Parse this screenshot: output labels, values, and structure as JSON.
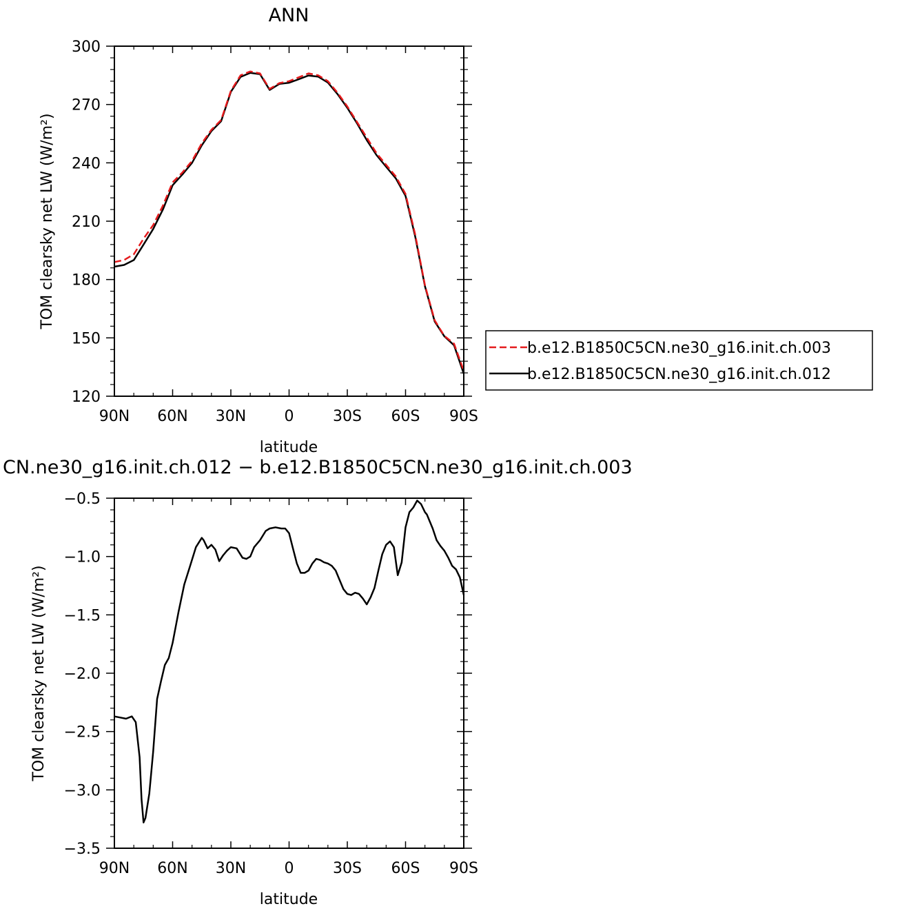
{
  "chart_data": [
    {
      "type": "line",
      "title": "ANN",
      "xlabel": "latitude",
      "ylabel": "TOM clearsky net LW (W/m²)",
      "xlim": [
        90,
        -90
      ],
      "ylim": [
        120,
        300
      ],
      "xticks": [
        90,
        60,
        30,
        0,
        -30,
        -60,
        -90
      ],
      "xtick_labels": [
        "90N",
        "60N",
        "30N",
        "0",
        "30S",
        "60S",
        "90S"
      ],
      "yticks": [
        120,
        150,
        180,
        210,
        240,
        270,
        300
      ],
      "ytick_labels": [
        "120",
        "150",
        "180",
        "210",
        "240",
        "270",
        "300"
      ],
      "grid": false,
      "legend_position": "right",
      "x": [
        90,
        85,
        80,
        75,
        70,
        65,
        60,
        55,
        50,
        45,
        40,
        35,
        30,
        25,
        20,
        15,
        10,
        5,
        0,
        -5,
        -10,
        -15,
        -20,
        -25,
        -30,
        -35,
        -40,
        -45,
        -50,
        -55,
        -60,
        -65,
        -70,
        -75,
        -80,
        -85,
        -90
      ],
      "series": [
        {
          "name": "b.e12.B1850C5CN.ne30_g16.init.ch.003",
          "color": "#e41a1c",
          "dash": "dashed",
          "values": [
            189,
            190,
            193,
            201,
            208,
            218,
            230,
            235,
            241,
            250,
            257,
            262,
            277,
            285,
            287,
            286,
            278,
            281,
            282,
            284,
            286,
            285,
            282,
            276,
            269,
            261,
            253,
            245,
            239,
            233,
            224,
            203,
            177,
            159,
            151,
            147,
            133
          ]
        },
        {
          "name": "b.e12.B1850C5CN.ne30_g16.init.ch.012",
          "color": "#000000",
          "dash": "solid",
          "values": [
            186.6,
            187.5,
            190,
            198,
            206,
            216,
            228.5,
            234,
            240,
            249,
            256.3,
            261.4,
            276.5,
            284.2,
            286.3,
            285.6,
            277.5,
            280.6,
            281.2,
            283,
            284.9,
            284.3,
            281.3,
            275.3,
            268.3,
            260.3,
            251.7,
            244,
            238,
            232,
            223,
            202,
            176.5,
            158.4,
            150.8,
            146.2,
            131.6
          ]
        }
      ]
    },
    {
      "type": "line",
      "title": "CN.ne30_g16.init.ch.012 − b.e12.B1850C5CN.ne30_g16.init.ch.003",
      "xlabel": "latitude",
      "ylabel": "TOM clearsky net LW (W/m²)",
      "xlim": [
        90,
        -90
      ],
      "ylim": [
        -3.5,
        -0.5
      ],
      "xticks": [
        90,
        60,
        30,
        0,
        -30,
        -60,
        -90
      ],
      "xtick_labels": [
        "90N",
        "60N",
        "30N",
        "0",
        "30S",
        "60S",
        "90S"
      ],
      "yticks": [
        -3.5,
        -3.0,
        -2.5,
        -2.0,
        -1.5,
        -1.0,
        -0.5
      ],
      "ytick_labels": [
        "−3.5",
        "−3.0",
        "−2.5",
        "−2.0",
        "−1.5",
        "−1.0",
        "−0.5"
      ],
      "grid": false,
      "x": [
        90,
        87,
        84,
        81,
        79,
        77,
        76,
        75,
        74,
        72,
        70,
        68,
        66,
        64,
        62,
        60,
        57,
        54,
        51,
        48,
        45,
        44,
        42,
        40,
        38,
        36,
        34,
        32,
        30,
        27,
        24,
        22,
        20,
        18,
        15,
        12,
        10,
        7,
        4,
        2,
        0,
        -2,
        -4,
        -6,
        -8,
        -10,
        -12,
        -14,
        -16,
        -18,
        -20,
        -22,
        -24,
        -26,
        -28,
        -30,
        -32,
        -34,
        -36,
        -38,
        -40,
        -42,
        -44,
        -46,
        -48,
        -50,
        -52,
        -54,
        -56,
        -58,
        -60,
        -62,
        -64,
        -66,
        -68,
        -70,
        -71,
        -72,
        -74,
        -76,
        -78,
        -80,
        -82,
        -84,
        -86,
        -88,
        -90
      ],
      "series": [
        {
          "name": "",
          "color": "#000000",
          "dash": "solid",
          "values": [
            -2.37,
            -2.38,
            -2.39,
            -2.37,
            -2.42,
            -2.72,
            -3.08,
            -3.28,
            -3.24,
            -3.03,
            -2.67,
            -2.22,
            -2.07,
            -1.93,
            -1.87,
            -1.74,
            -1.48,
            -1.24,
            -1.08,
            -0.92,
            -0.84,
            -0.86,
            -0.93,
            -0.9,
            -0.94,
            -1.04,
            -0.99,
            -0.95,
            -0.92,
            -0.93,
            -1.01,
            -1.02,
            -1.0,
            -0.92,
            -0.86,
            -0.78,
            -0.76,
            -0.75,
            -0.76,
            -0.76,
            -0.8,
            -0.93,
            -1.06,
            -1.14,
            -1.14,
            -1.12,
            -1.06,
            -1.02,
            -1.03,
            -1.05,
            -1.06,
            -1.08,
            -1.12,
            -1.2,
            -1.28,
            -1.32,
            -1.33,
            -1.31,
            -1.32,
            -1.36,
            -1.41,
            -1.35,
            -1.27,
            -1.12,
            -0.98,
            -0.9,
            -0.87,
            -0.92,
            -1.16,
            -1.05,
            -0.75,
            -0.62,
            -0.58,
            -0.52,
            -0.55,
            -0.62,
            -0.64,
            -0.68,
            -0.76,
            -0.86,
            -0.91,
            -0.95,
            -1.01,
            -1.08,
            -1.11,
            -1.18,
            -1.33
          ]
        }
      ]
    }
  ]
}
